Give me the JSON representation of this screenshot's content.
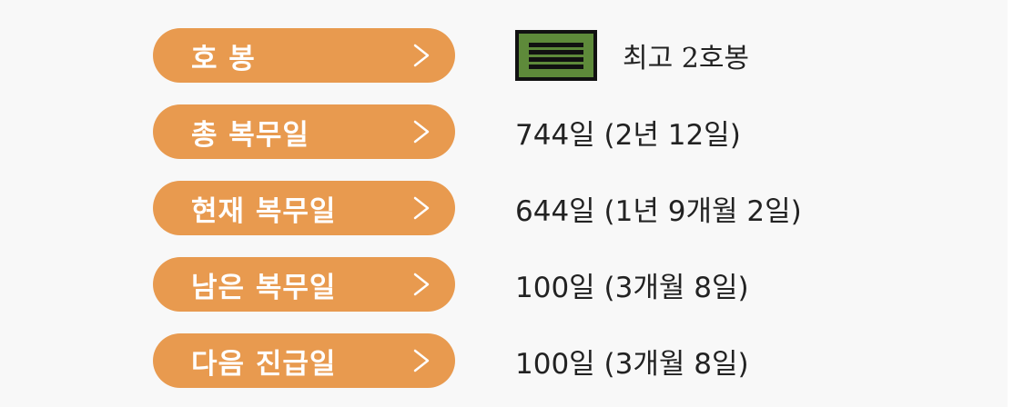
{
  "rows": [
    {
      "label": "호 봉",
      "value": "최고 2호봉"
    },
    {
      "label": "총 복무일",
      "value": "744일 (2년 12일)"
    },
    {
      "label": "현재 복무일",
      "value": "644일 (1년 9개월 2일)"
    },
    {
      "label": "남은 복무일",
      "value": "100일 (3개월 8일)"
    },
    {
      "label": "다음 진급일",
      "value": "100일 (3개월 8일)"
    }
  ],
  "rank_badge": {
    "icon": "rank-stripes-icon",
    "color": "#5e8a3a"
  },
  "colors": {
    "pill": "#e89a4f",
    "pill_text": "#ffffff",
    "value_text": "#222222",
    "background": "#f8f8f8"
  }
}
